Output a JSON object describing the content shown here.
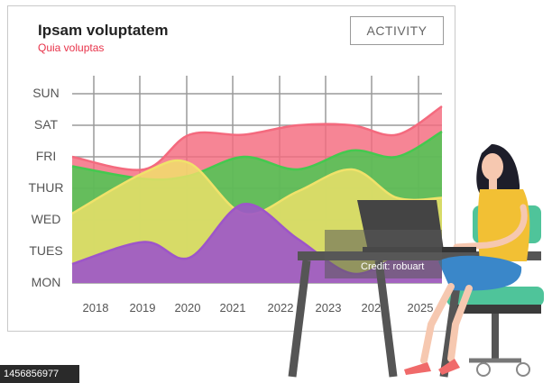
{
  "header": {
    "title": "Ipsam voluptatem",
    "subtitle": "Quia voluptas",
    "subtitle_color": "#e8334a",
    "activity_button": "ACTIVITY"
  },
  "chart_data": {
    "type": "area",
    "categories": [
      "2018",
      "2019",
      "2020",
      "2021",
      "2022",
      "2023",
      "2024",
      "2025"
    ],
    "y_categories": [
      "MON",
      "TUES",
      "WED",
      "THUR",
      "FRI",
      "SAT",
      "SUN"
    ],
    "grid": true,
    "series": [
      {
        "color": "#f46a7e",
        "values": [
          4.0,
          3.6,
          4.7,
          4.7,
          5.0,
          5.0,
          4.7,
          5.6
        ]
      },
      {
        "color": "#44c94f",
        "values": [
          3.7,
          3.3,
          3.4,
          4.0,
          3.6,
          4.2,
          4.0,
          4.8
        ]
      },
      {
        "color": "#f0e26a",
        "values": [
          2.2,
          3.5,
          3.8,
          2.2,
          2.9,
          3.6,
          2.7,
          2.7
        ]
      },
      {
        "color": "#9d55c9",
        "values": [
          0.6,
          1.3,
          0.8,
          2.5,
          1.4,
          0.3,
          0.8,
          1.2
        ]
      }
    ]
  },
  "watermark": {
    "id": "1456856977",
    "credit": "Credit: robuart"
  },
  "colors": {
    "shirt": "#f2c034",
    "skirt": "#3a87c9",
    "chair": "#4fc49a",
    "desk": "#555555",
    "laptop": "#444444",
    "hair": "#1e1e2a",
    "skin": "#f6c8b0",
    "shoes": "#f06a6a"
  }
}
